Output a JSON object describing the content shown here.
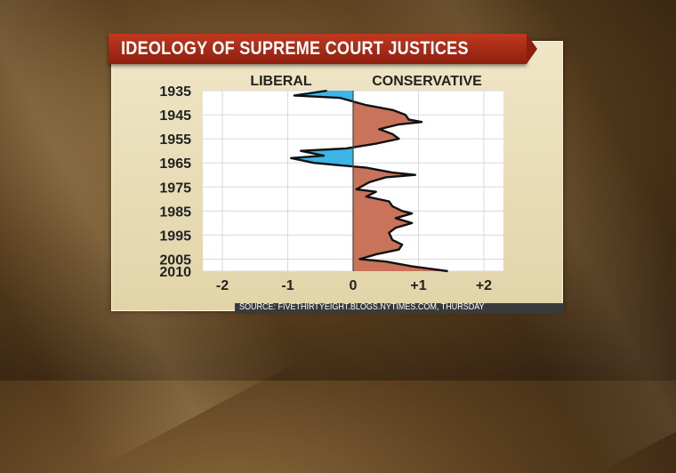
{
  "title": "IDEOLOGY OF SUPREME COURT JUSTICES",
  "source": "SOURCE: FIVETHIRTYEIGHT.BLOGS.NYTIMES.COM, THURSDAY",
  "colors": {
    "liberal_fill": "#3bb6e6",
    "conservative_fill": "#c8735a",
    "title_bar": "#b02e18",
    "panel": "#ece2c0"
  },
  "chart_data": {
    "type": "area",
    "title": "IDEOLOGY OF SUPREME COURT JUSTICES",
    "left_label": "LIBERAL",
    "right_label": "CONSERVATIVE",
    "orientation": "horizontal",
    "x_ticks": [
      "-2",
      "-1",
      "0",
      "+1",
      "+2"
    ],
    "x_tick_values": [
      -2,
      -1,
      0,
      1,
      2
    ],
    "xlim": [
      -2.3,
      2.3
    ],
    "y_ticks": [
      "1935",
      "1945",
      "1955",
      "1965",
      "1975",
      "1985",
      "1995",
      "2005",
      "2010"
    ],
    "y_tick_values": [
      1935,
      1945,
      1955,
      1965,
      1975,
      1985,
      1995,
      2005,
      2010
    ],
    "ylim": [
      1935,
      2010
    ],
    "grid": true,
    "points": [
      {
        "year": 1935,
        "value": -0.4
      },
      {
        "year": 1937,
        "value": -0.9
      },
      {
        "year": 1938,
        "value": -0.2
      },
      {
        "year": 1941,
        "value": 0.2
      },
      {
        "year": 1943,
        "value": 0.6
      },
      {
        "year": 1945,
        "value": 0.8
      },
      {
        "year": 1947,
        "value": 0.85
      },
      {
        "year": 1948,
        "value": 1.05
      },
      {
        "year": 1949,
        "value": 0.7
      },
      {
        "year": 1951,
        "value": 0.4
      },
      {
        "year": 1953,
        "value": 0.6
      },
      {
        "year": 1955,
        "value": 0.7
      },
      {
        "year": 1957,
        "value": 0.35
      },
      {
        "year": 1959,
        "value": -0.1
      },
      {
        "year": 1960,
        "value": -0.8
      },
      {
        "year": 1962,
        "value": -0.45
      },
      {
        "year": 1963,
        "value": -0.95
      },
      {
        "year": 1965,
        "value": -0.6
      },
      {
        "year": 1967,
        "value": 0.2
      },
      {
        "year": 1969,
        "value": 0.6
      },
      {
        "year": 1970,
        "value": 0.95
      },
      {
        "year": 1971,
        "value": 0.5
      },
      {
        "year": 1973,
        "value": 0.25
      },
      {
        "year": 1976,
        "value": 0.05
      },
      {
        "year": 1977,
        "value": 0.35
      },
      {
        "year": 1979,
        "value": 0.2
      },
      {
        "year": 1981,
        "value": 0.55
      },
      {
        "year": 1983,
        "value": 0.6
      },
      {
        "year": 1985,
        "value": 0.75
      },
      {
        "year": 1986,
        "value": 0.9
      },
      {
        "year": 1988,
        "value": 0.65
      },
      {
        "year": 1990,
        "value": 0.9
      },
      {
        "year": 1992,
        "value": 0.65
      },
      {
        "year": 1994,
        "value": 0.55
      },
      {
        "year": 1997,
        "value": 0.6
      },
      {
        "year": 1999,
        "value": 0.75
      },
      {
        "year": 2001,
        "value": 0.7
      },
      {
        "year": 2003,
        "value": 0.35
      },
      {
        "year": 2005,
        "value": 0.1
      },
      {
        "year": 2006,
        "value": 0.5
      },
      {
        "year": 2008,
        "value": 0.9
      },
      {
        "year": 2010,
        "value": 1.45
      }
    ]
  }
}
